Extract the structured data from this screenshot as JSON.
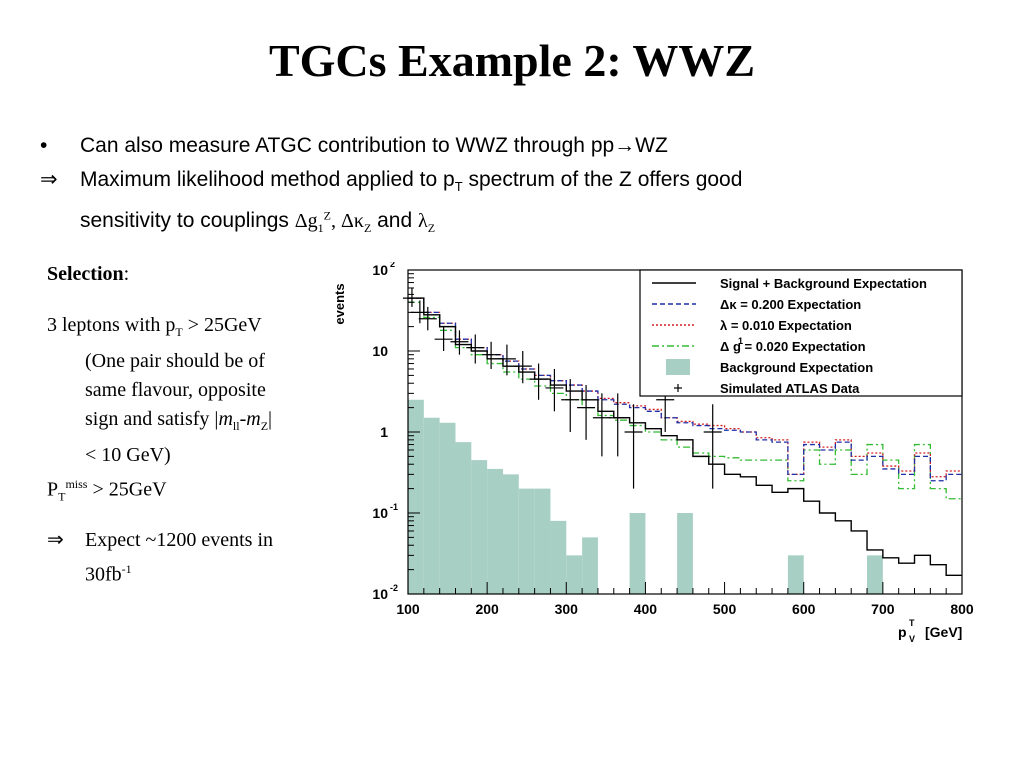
{
  "slide": {
    "title": "TGCs Example 2: WWZ",
    "bullets": [
      {
        "symbol": "•",
        "text": "Can also measure ATGC contribution to WWZ through pp→WZ"
      },
      {
        "symbol": "⇒",
        "line1_pre": "Maximum likelihood method applied to p",
        "line1_sub": "T",
        "line1_post": " spectrum of the Z offers good",
        "line2_pre": "sensitivity to couplings ",
        "coupling_1": "Δg",
        "coupling_1_sub": "1",
        "coupling_1_sup": "Z",
        "sep": ", ",
        "coupling_2": "Δκ",
        "coupling_2_sub": "Z",
        "and": " and ",
        "coupling_3": "λ",
        "coupling_3_sub": "Z"
      }
    ]
  },
  "selection": {
    "heading": "Selection",
    "colon": ":",
    "leptons_pre": "3 leptons with p",
    "leptons_sub": "T",
    "leptons_post": " > 25GeV",
    "pair_line1": "(One pair should be of",
    "pair_line2": "same flavour, opposite",
    "pair_line3_pre": "sign and satisfy |",
    "m": "m",
    "ll": "ll",
    "dash": "-",
    "mz": "m",
    "z": "Z",
    "bar": "|",
    "pair_line4": "< 10 GeV)",
    "ptmiss_p": "P",
    "ptmiss_sub": "T",
    "ptmiss_sup": "miss",
    "ptmiss_post": " > 25GeV",
    "expect_arrow": "⇒",
    "expect_line1": "Expect ~1200 events in",
    "expect_line2_pre": "30fb",
    "expect_line2_sup": "-1"
  },
  "chart_data": {
    "type": "line",
    "ylabel": "events",
    "xlabel_main": "p",
    "xlabel_sup": "T",
    "xlabel_sub": "V",
    "xlabel_unit": "[GeV]",
    "xlim": [
      100,
      800
    ],
    "ylim": [
      0.01,
      100
    ],
    "y_log": true,
    "x_ticks": [
      100,
      200,
      300,
      400,
      500,
      600,
      700,
      800
    ],
    "x_tick_labels": [
      "100",
      "200",
      "300",
      "400",
      "500",
      "600",
      "700",
      "800"
    ],
    "y_ticks": [
      0.01,
      0.1,
      1,
      10,
      100
    ],
    "y_tick_labels": [
      {
        "base": "10",
        "exp": "-2"
      },
      {
        "base": "10",
        "exp": "-1"
      },
      {
        "base": "1",
        "exp": ""
      },
      {
        "base": "10",
        "exp": ""
      },
      {
        "base": "10",
        "exp": "2"
      }
    ],
    "bin_edges": [
      100,
      120,
      140,
      160,
      180,
      200,
      220,
      240,
      260,
      280,
      300,
      320,
      340,
      360,
      380,
      400,
      420,
      440,
      460,
      480,
      500,
      520,
      540,
      560,
      580,
      600,
      620,
      640,
      660,
      680,
      700,
      720,
      740,
      760,
      780,
      800
    ],
    "legend_position": "top-right",
    "legend": [
      {
        "label": "Signal + Background Expectation",
        "style": "solid",
        "color": "#000000"
      },
      {
        "label": "Δκ =    0.200 Expectation",
        "style": "dashed",
        "color": "#1f2fa8"
      },
      {
        "label": "λ =    0.010 Expectation",
        "style": "dotted",
        "color": "#d42020"
      },
      {
        "label": "Δ g  =    0.020 Expectation",
        "sup": "1",
        "style": "dashdot",
        "color": "#33bb33"
      },
      {
        "label": "Background Expectation",
        "style": "fill",
        "color": "#a8cfc4"
      },
      {
        "label": "Simulated ATLAS Data",
        "style": "marker",
        "color": "#000000"
      }
    ],
    "series": [
      {
        "name": "Signal + Background Expectation",
        "color": "#000000",
        "values": [
          45,
          28,
          20,
          12,
          10,
          8,
          6.5,
          5.5,
          4.5,
          3.8,
          3.2,
          2.5,
          1.8,
          1.5,
          1.3,
          1.1,
          0.9,
          0.8,
          0.5,
          0.4,
          0.3,
          0.28,
          0.22,
          0.18,
          0.2,
          0.14,
          0.1,
          0.08,
          0.06,
          0.035,
          0.028,
          0.024,
          0.03,
          0.023,
          0.017
        ]
      },
      {
        "name": "Δκ =    0.200 Expectation",
        "color": "#1f2fa8",
        "values": [
          45,
          30,
          22,
          14,
          11,
          9,
          7.5,
          6,
          5,
          4.3,
          3.8,
          3.2,
          2.5,
          2.2,
          2,
          1.8,
          1.5,
          1.3,
          1.2,
          1.1,
          1.05,
          1,
          0.8,
          0.75,
          0.3,
          0.7,
          0.6,
          0.75,
          0.45,
          0.5,
          0.35,
          0.3,
          0.5,
          0.25,
          0.3
        ]
      },
      {
        "name": "λ =    0.010 Expectation",
        "color": "#d42020",
        "values": [
          45,
          30,
          22,
          14,
          11,
          9,
          7.5,
          6,
          5,
          4.3,
          3.8,
          3.2,
          2.6,
          2.3,
          2.1,
          1.9,
          1.5,
          1.35,
          1.25,
          1.2,
          1.1,
          1,
          0.85,
          0.8,
          0.3,
          0.75,
          0.65,
          0.8,
          0.5,
          0.55,
          0.38,
          0.33,
          0.55,
          0.28,
          0.33
        ]
      },
      {
        "name": "Δ g  =    0.020 Expectation",
        "color": "#33bb33",
        "values": [
          40,
          26,
          18,
          11,
          9,
          7,
          5.5,
          4.5,
          3.7,
          3,
          2.5,
          2,
          1.6,
          1.4,
          1.2,
          1,
          0.8,
          0.65,
          0.55,
          0.5,
          0.48,
          0.45,
          0.45,
          0.45,
          0.25,
          0.6,
          0.4,
          0.6,
          0.3,
          0.7,
          0.45,
          0.2,
          0.7,
          0.2,
          0.15
        ]
      },
      {
        "name": "Background Expectation",
        "color": "#a8cfc4",
        "values": [
          2.5,
          1.5,
          1.3,
          0.75,
          0.45,
          0.35,
          0.3,
          0.2,
          0.2,
          0.08,
          0.03,
          0.05,
          null,
          null,
          0.1,
          null,
          null,
          0.1,
          null,
          null,
          null,
          null,
          null,
          null,
          0.03,
          null,
          null,
          null,
          null,
          0.03,
          null,
          null,
          null,
          null,
          null
        ]
      }
    ],
    "data_points": [
      {
        "x": 105,
        "y": 45,
        "err": [
          35,
          60
        ]
      },
      {
        "x": 115,
        "y": 30,
        "err": [
          22,
          42
        ]
      },
      {
        "x": 125,
        "y": 25,
        "err": [
          18,
          35
        ]
      },
      {
        "x": 145,
        "y": 14,
        "err": [
          10,
          20
        ]
      },
      {
        "x": 165,
        "y": 13,
        "err": [
          9,
          18
        ]
      },
      {
        "x": 185,
        "y": 11,
        "err": [
          7,
          16
        ]
      },
      {
        "x": 205,
        "y": 9,
        "err": [
          6,
          13
        ]
      },
      {
        "x": 225,
        "y": 8,
        "err": [
          5,
          12
        ]
      },
      {
        "x": 245,
        "y": 6.5,
        "err": [
          4,
          10
        ]
      },
      {
        "x": 265,
        "y": 4.5,
        "err": [
          2.5,
          7
        ]
      },
      {
        "x": 285,
        "y": 3.5,
        "err": [
          1.8,
          6
        ]
      },
      {
        "x": 305,
        "y": 2.5,
        "err": [
          1,
          4.5
        ]
      },
      {
        "x": 325,
        "y": 2,
        "err": [
          0.8,
          3.8
        ]
      },
      {
        "x": 345,
        "y": 1.5,
        "err": [
          0.5,
          3
        ]
      },
      {
        "x": 365,
        "y": 1.5,
        "err": [
          0.5,
          3
        ]
      },
      {
        "x": 385,
        "y": 1,
        "err": [
          0.2,
          2.2
        ]
      },
      {
        "x": 425,
        "y": 2.5,
        "err": [
          1,
          4.5
        ]
      },
      {
        "x": 485,
        "y": 1,
        "err": [
          0.2,
          2.2
        ]
      }
    ]
  }
}
